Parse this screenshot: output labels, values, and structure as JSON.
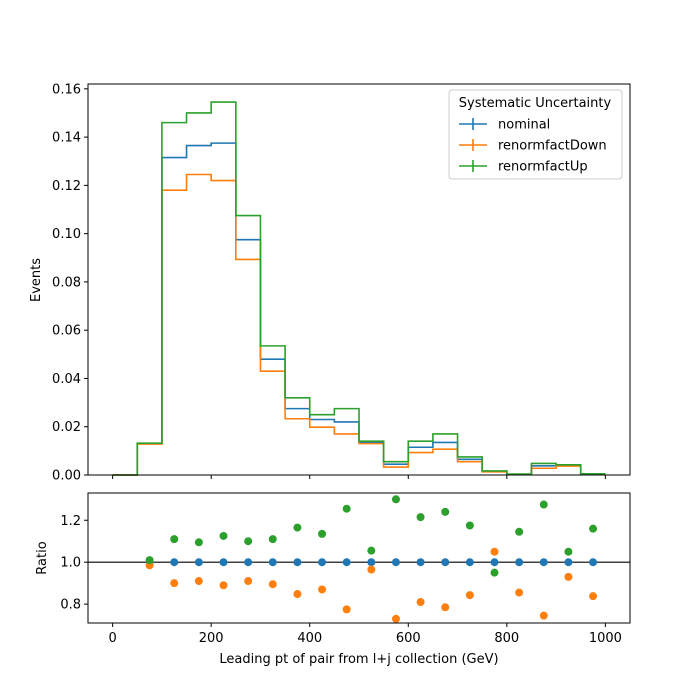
{
  "chart_data": [
    {
      "type": "step",
      "panel": "main",
      "ylabel": "Events",
      "ylim": [
        0.0,
        0.162
      ],
      "xlim": [
        -50,
        1050
      ],
      "yticks": [
        0.0,
        0.02,
        0.04,
        0.06,
        0.08,
        0.1,
        0.12,
        0.14,
        0.16
      ],
      "ytick_labels": [
        "0.00",
        "0.02",
        "0.04",
        "0.06",
        "0.08",
        "0.10",
        "0.12",
        "0.14",
        "0.16"
      ],
      "bin_edges": [
        0,
        50,
        100,
        150,
        200,
        250,
        300,
        350,
        400,
        450,
        500,
        550,
        600,
        650,
        700,
        750,
        800,
        850,
        900,
        950,
        1000
      ],
      "legend": {
        "title": "Systematic Uncertainty",
        "position": "top-right"
      },
      "series": [
        {
          "name": "nominal",
          "color": "#1f77b4",
          "values": [
            0.0,
            0.013,
            0.1315,
            0.1365,
            0.1375,
            0.0975,
            0.048,
            0.0275,
            0.023,
            0.022,
            0.0135,
            0.0045,
            0.0115,
            0.0135,
            0.0065,
            0.0015,
            0.0003,
            0.0038,
            0.004,
            0.0004
          ]
        },
        {
          "name": "renormfactDown",
          "color": "#ff7f0e",
          "values": [
            0.0,
            0.0128,
            0.118,
            0.1245,
            0.122,
            0.0893,
            0.043,
            0.0233,
            0.0198,
            0.017,
            0.013,
            0.0033,
            0.0093,
            0.0107,
            0.0055,
            0.0013,
            0.0002,
            0.0028,
            0.0037,
            0.0003
          ]
        },
        {
          "name": "renormfactUp",
          "color": "#2ca02c",
          "values": [
            0.0,
            0.0132,
            0.146,
            0.15,
            0.1545,
            0.1075,
            0.0535,
            0.032,
            0.025,
            0.0275,
            0.014,
            0.0055,
            0.014,
            0.017,
            0.0075,
            0.0017,
            0.0004,
            0.0048,
            0.0042,
            0.0005
          ]
        }
      ]
    },
    {
      "type": "scatter",
      "panel": "ratio",
      "xlabel": "Leading pt of pair from l+j collection (GeV)",
      "ylabel": "Ratio",
      "ylim": [
        0.71,
        1.33
      ],
      "xlim": [
        -50,
        1050
      ],
      "yticks": [
        0.8,
        1.0,
        1.2
      ],
      "ytick_labels": [
        "0.8",
        "1.0",
        "1.2"
      ],
      "xticks": [
        0,
        200,
        400,
        600,
        800,
        1000
      ],
      "xtick_labels": [
        "0",
        "200",
        "400",
        "600",
        "800",
        "1000"
      ],
      "reference_line": 1.0,
      "x": [
        75,
        125,
        175,
        225,
        275,
        325,
        375,
        425,
        475,
        525,
        575,
        625,
        675,
        725,
        775,
        825,
        875,
        925,
        975
      ],
      "series": [
        {
          "name": "nominal",
          "color": "#1f77b4",
          "values": [
            1.0,
            1.0,
            1.0,
            1.0,
            1.0,
            1.0,
            1.0,
            1.0,
            1.0,
            1.0,
            1.0,
            1.0,
            1.0,
            1.0,
            1.0,
            1.0,
            1.0,
            1.0,
            1.0
          ]
        },
        {
          "name": "renormfactDown",
          "color": "#ff7f0e",
          "values": [
            0.985,
            0.9,
            0.91,
            0.89,
            0.91,
            0.895,
            0.848,
            0.87,
            0.775,
            0.965,
            0.73,
            0.81,
            0.785,
            0.843,
            1.05,
            0.855,
            0.745,
            0.93,
            0.838
          ]
        },
        {
          "name": "renormfactUp",
          "color": "#2ca02c",
          "values": [
            1.01,
            1.11,
            1.095,
            1.125,
            1.1,
            1.11,
            1.165,
            1.135,
            1.255,
            1.055,
            1.3,
            1.215,
            1.24,
            1.175,
            0.95,
            1.145,
            1.275,
            1.05,
            1.16
          ]
        }
      ]
    }
  ]
}
